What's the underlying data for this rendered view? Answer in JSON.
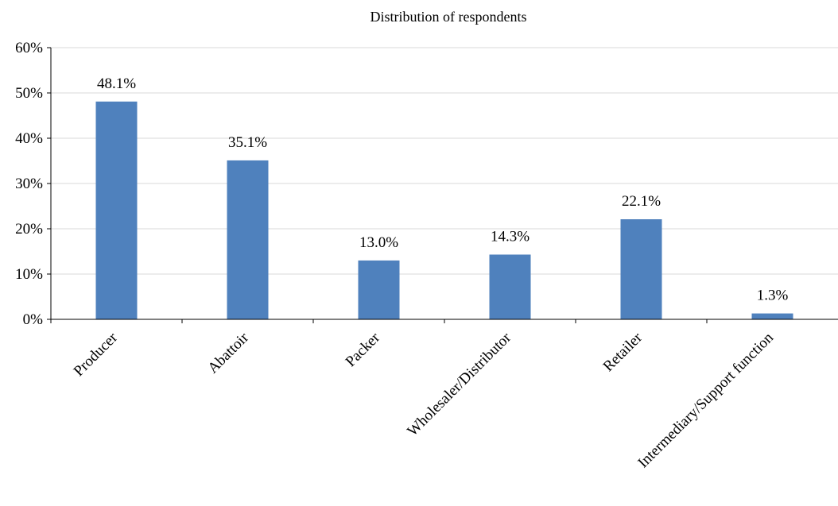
{
  "chart_data": {
    "type": "bar",
    "title": "Distribution of respondents",
    "xlabel": "",
    "ylabel": "",
    "categories": [
      "Producer",
      "Abattoir",
      "Packer",
      "Wholesaler/Distributor",
      "Retailer",
      "Intermediary/Support function"
    ],
    "values": [
      48.1,
      35.1,
      13.0,
      14.3,
      22.1,
      1.3
    ],
    "data_labels": [
      "48.1%",
      "35.1%",
      "13.0%",
      "14.3%",
      "22.1%",
      "1.3%"
    ],
    "ylim": [
      0,
      60
    ],
    "yticks": [
      0,
      10,
      20,
      30,
      40,
      50,
      60
    ],
    "ytick_labels": [
      "0%",
      "10%",
      "20%",
      "30%",
      "40%",
      "50%",
      "60%"
    ],
    "grid": true,
    "legend": "none",
    "bar_color": "#4f81bd",
    "grid_color": "#d9d9d9",
    "axis_color": "#000000"
  }
}
